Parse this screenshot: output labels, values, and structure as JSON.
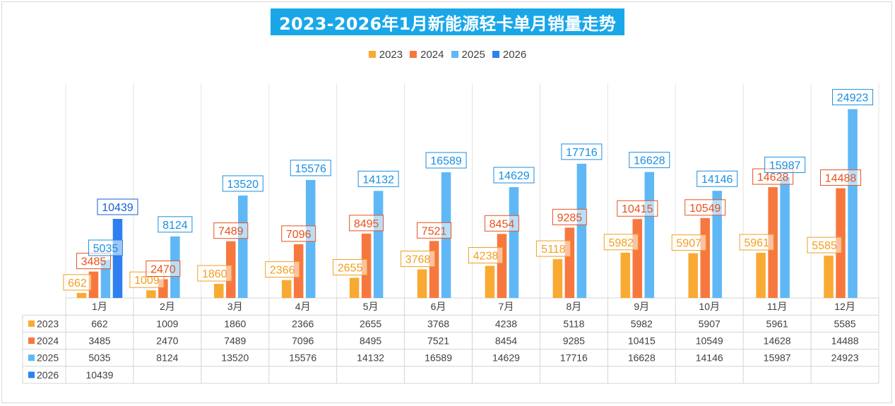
{
  "title": "2023-2026年1月新能源轻卡单月销量走势",
  "chart_data": {
    "type": "bar",
    "title": "2023-2026年1月新能源轻卡单月销量走势",
    "categories": [
      "1月",
      "2月",
      "3月",
      "4月",
      "5月",
      "6月",
      "7月",
      "8月",
      "9月",
      "10月",
      "11月",
      "12月"
    ],
    "series": [
      {
        "name": "2023",
        "color": "#f9aa32",
        "label_color": "#f0a020",
        "values": [
          662,
          1009,
          1860,
          2366,
          2655,
          3768,
          4238,
          5118,
          5982,
          5907,
          5961,
          5585
        ]
      },
      {
        "name": "2024",
        "color": "#f7783f",
        "label_color": "#e8521d",
        "values": [
          3485,
          2470,
          7489,
          7096,
          8495,
          7521,
          8454,
          9285,
          10415,
          10549,
          14628,
          14488
        ]
      },
      {
        "name": "2025",
        "color": "#5fb8f5",
        "label_color": "#1a8fe0",
        "values": [
          5035,
          8124,
          13520,
          15576,
          14132,
          16589,
          14629,
          17716,
          16628,
          14146,
          15987,
          24923
        ]
      },
      {
        "name": "2026",
        "color": "#2f7ff0",
        "label_color": "#1660d8",
        "values": [
          10439,
          null,
          null,
          null,
          null,
          null,
          null,
          null,
          null,
          null,
          null,
          null
        ]
      }
    ],
    "ylim": [
      0,
      26000
    ],
    "grid": false,
    "legend": "top-center",
    "data_table": true
  }
}
